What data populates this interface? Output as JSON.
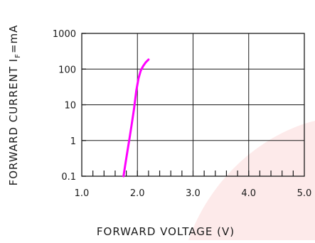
{
  "chart_data": {
    "type": "line",
    "xlabel": "FORWARD VOLTAGE (V)",
    "ylabel": "FORWARD CURRENT I_F=mA",
    "ylabel_parts": {
      "prefix": "FORWARD CURRENT I",
      "subscript": "F",
      "suffix": "=mA"
    },
    "x_scale": "linear",
    "y_scale": "log",
    "xlim": [
      1.0,
      5.0
    ],
    "ylim": [
      0.1,
      1000
    ],
    "x_major_ticks": [
      1.0,
      2.0,
      3.0,
      4.0,
      5.0
    ],
    "x_tick_labels": [
      "1.0",
      "2.0",
      "3.0",
      "4.0",
      "5.0"
    ],
    "x_minor_step": 0.2,
    "y_ticks": [
      0.1,
      1,
      10,
      100,
      1000
    ],
    "y_tick_labels": [
      "0.1",
      "1",
      "10",
      "100",
      "1000"
    ],
    "grid": true,
    "series": [
      {
        "color": "#ff00ff",
        "x": [
          1.75,
          1.78,
          1.82,
          1.86,
          1.9,
          1.94,
          1.98,
          2.02,
          2.06,
          2.1,
          2.15,
          2.2
        ],
        "y": [
          0.1,
          0.2,
          0.5,
          1.2,
          3.0,
          8.0,
          25,
          55,
          90,
          120,
          155,
          185
        ]
      }
    ],
    "colors": {
      "axis": "#1a1a1a",
      "grid": "#1a1a1a",
      "background_shape": "#fdeaea"
    }
  }
}
